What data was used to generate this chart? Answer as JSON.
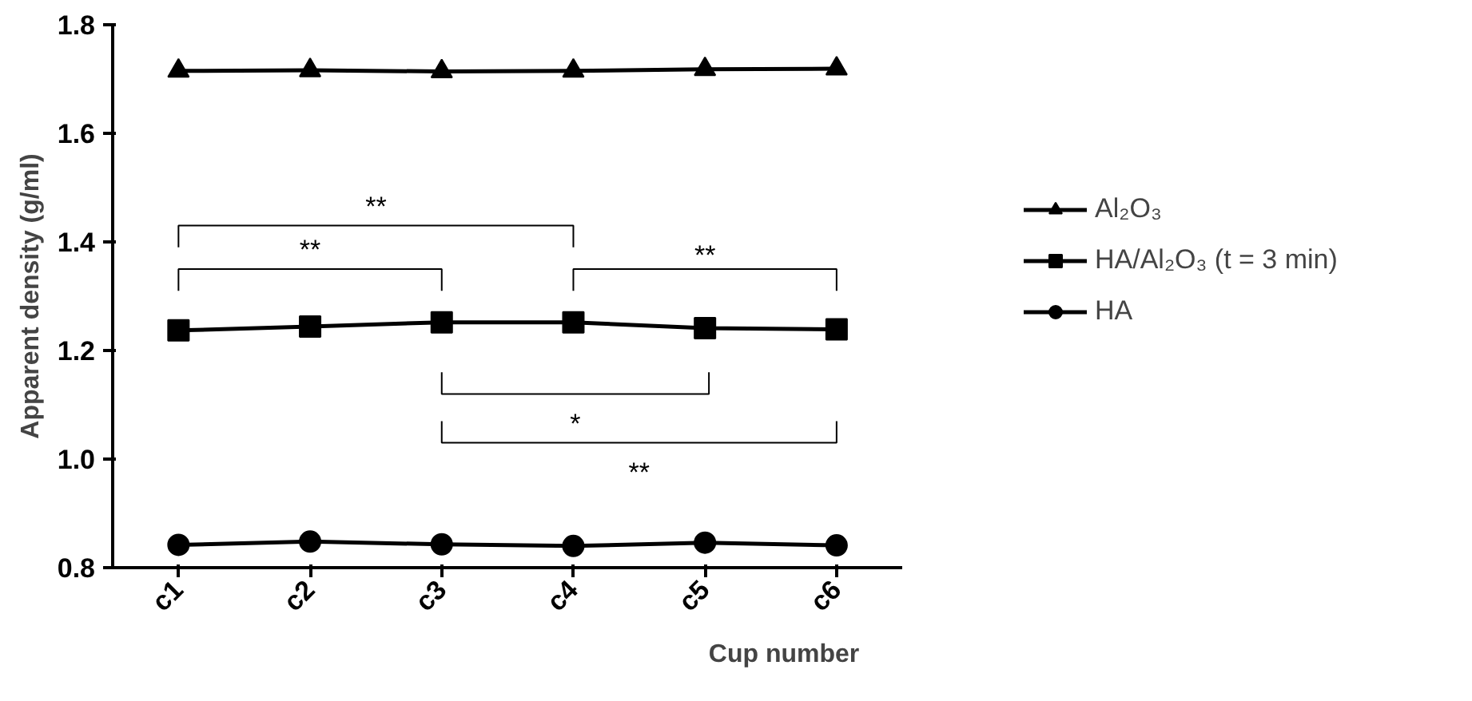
{
  "chart_data": {
    "type": "line",
    "xlabel": "Cup number",
    "ylabel": "Apparent density (g/ml)",
    "categories": [
      "c1",
      "c2",
      "c3",
      "c4",
      "c5",
      "c6"
    ],
    "series": [
      {
        "name": "Al₂O₃",
        "color": "#000000",
        "marker": "triangle",
        "values": [
          1.715,
          1.716,
          1.714,
          1.715,
          1.718,
          1.719
        ]
      },
      {
        "name": "HA/Al₂O₃ (t = 3 min)",
        "color": "#000000",
        "marker": "square",
        "values": [
          1.237,
          1.244,
          1.252,
          1.252,
          1.241,
          1.239
        ]
      },
      {
        "name": "HA",
        "color": "#000000",
        "marker": "circle",
        "values": [
          0.842,
          0.848,
          0.843,
          0.84,
          0.846,
          0.841
        ]
      }
    ],
    "ylim": [
      0.8,
      1.8
    ],
    "yticks": [
      0.8,
      {
        "value": 1.0,
        "label": "1.0"
      },
      1.2,
      1.4,
      1.6,
      1.8
    ],
    "annotations": [
      "**",
      "**",
      "**",
      "*",
      "**"
    ],
    "grid": false,
    "legend": "right",
    "line_style": "solid"
  }
}
